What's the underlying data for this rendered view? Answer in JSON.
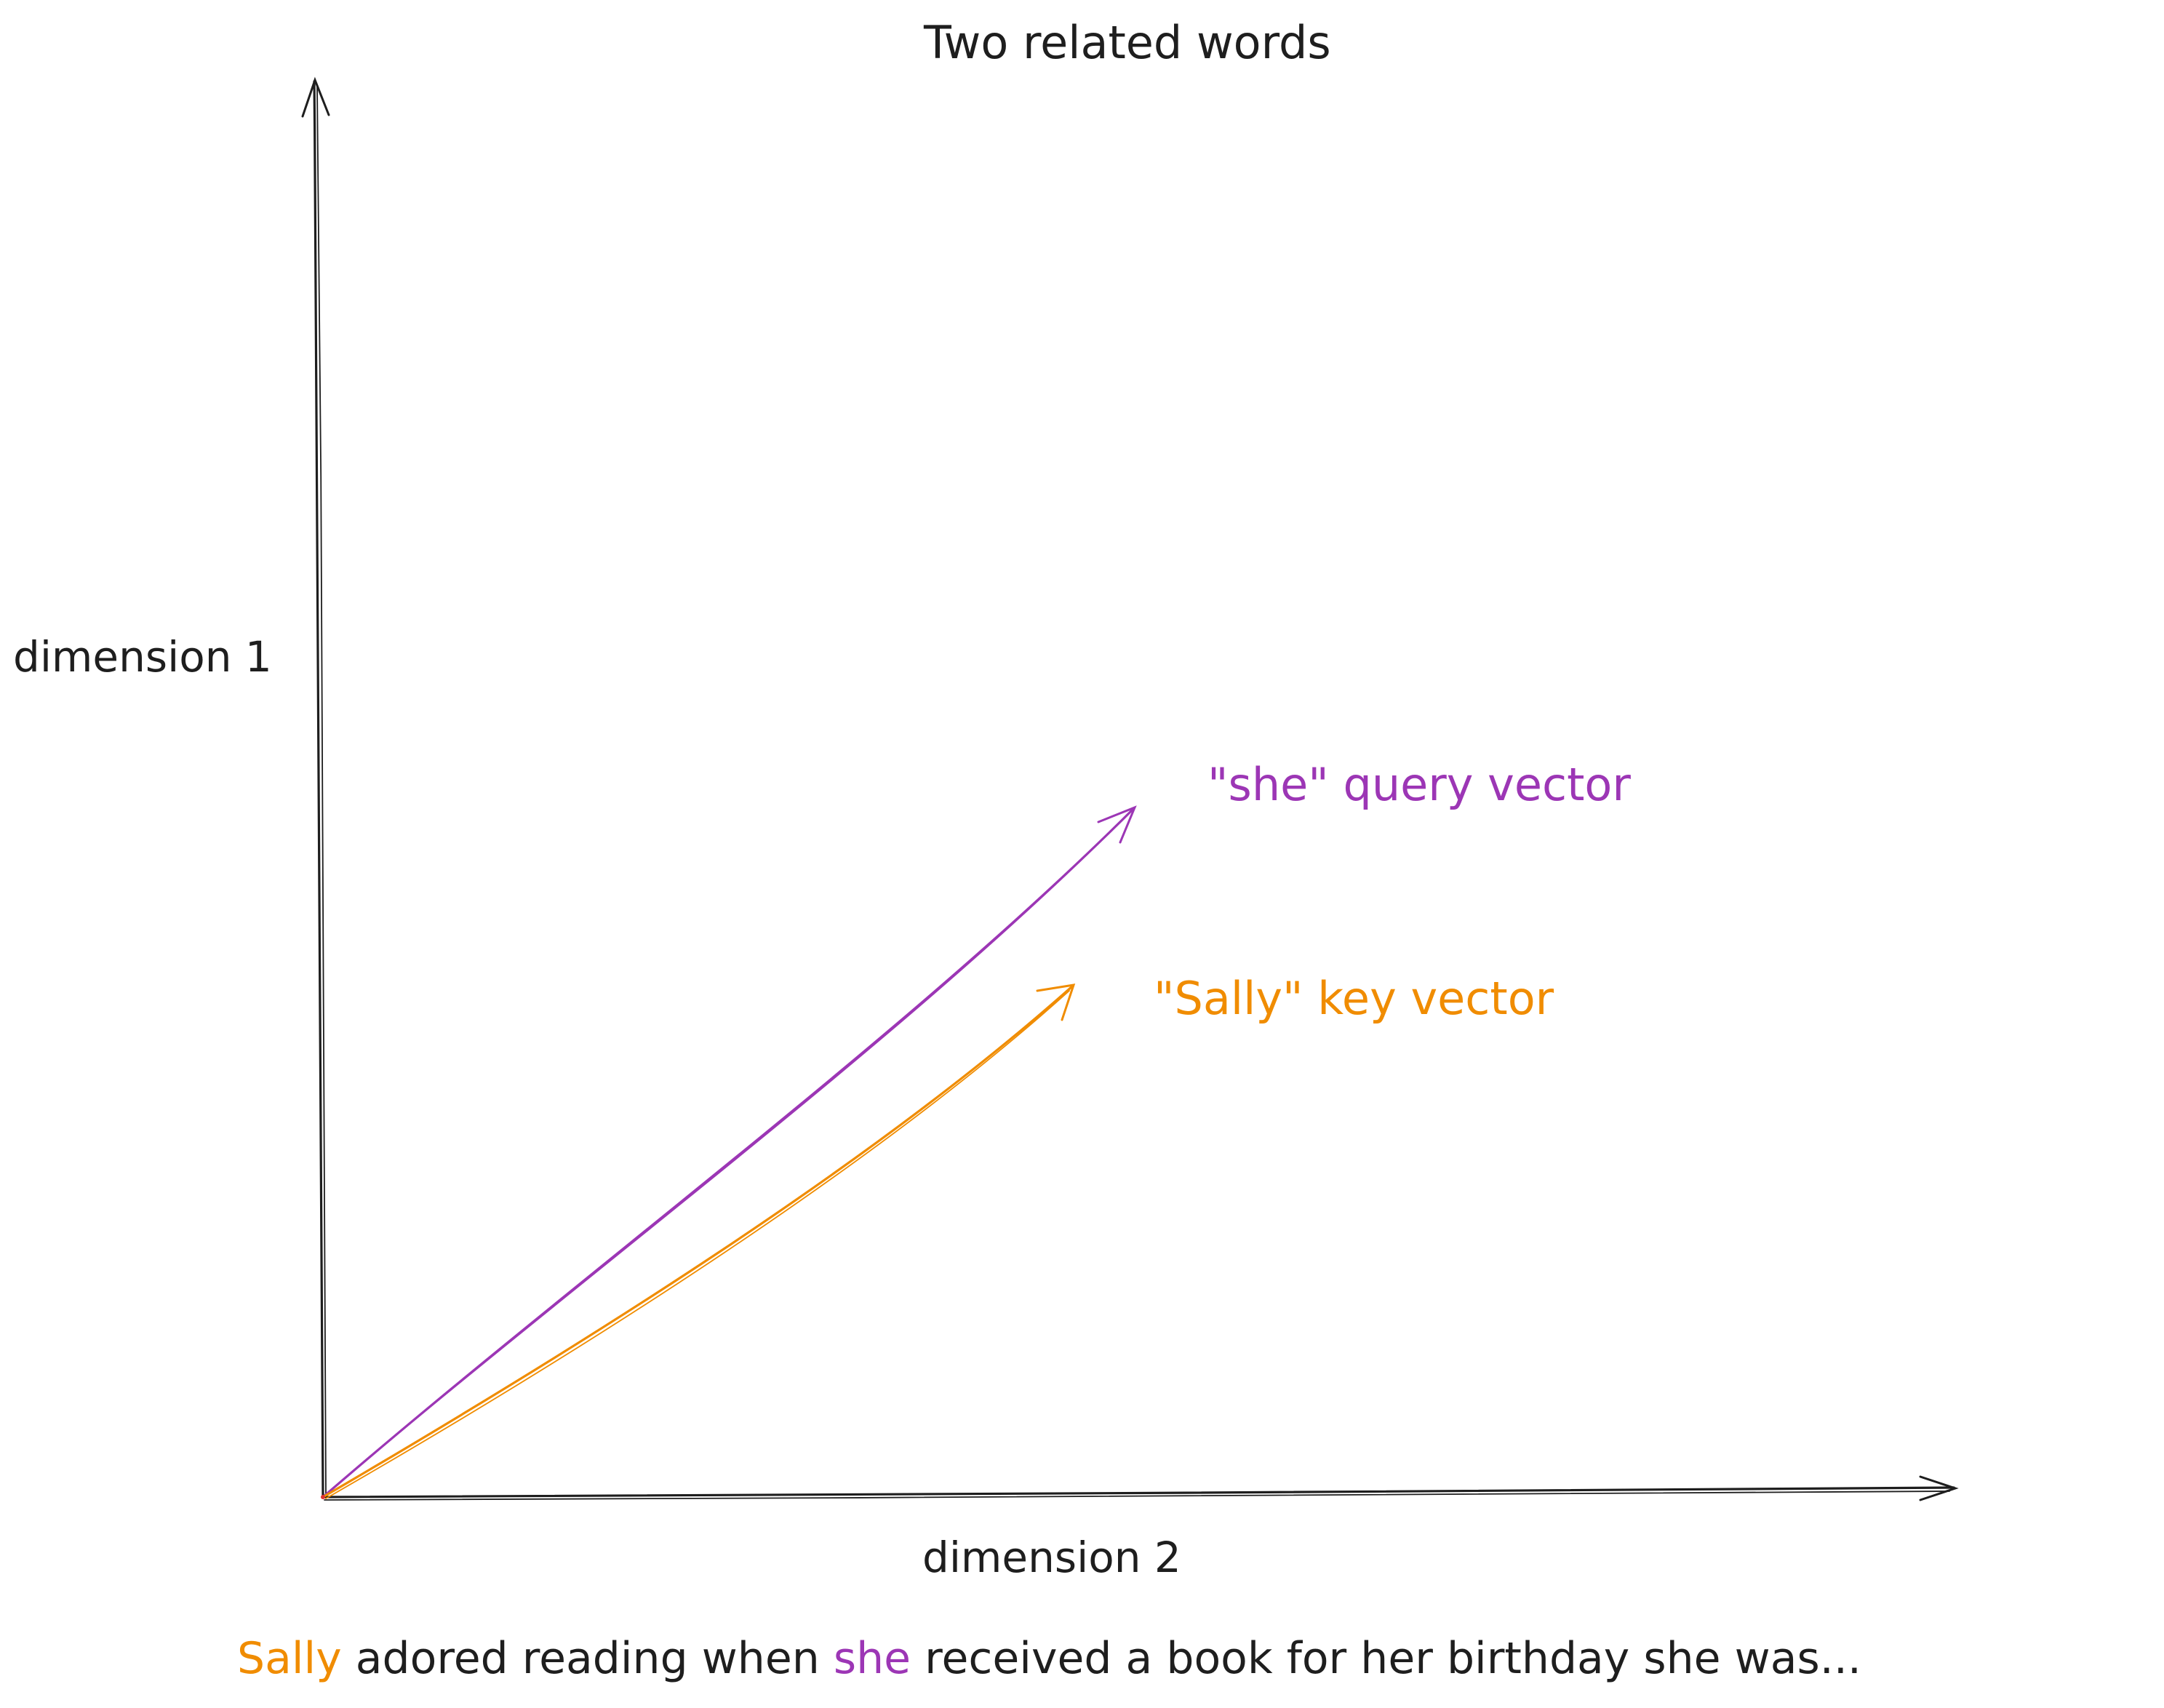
{
  "title": "Two related words",
  "axes": {
    "y_label": "dimension 1",
    "x_label": "dimension 2"
  },
  "vectors": {
    "query": {
      "label": "\"she\" query vector",
      "color": "#9c36b5"
    },
    "key": {
      "label": "\"Sally\" key vector",
      "color": "#f08c00"
    }
  },
  "sentence": {
    "word_key": "Sally",
    "part1": " adored reading when ",
    "word_query": "she",
    "part2": " received a book for her birthday she was..."
  },
  "colors": {
    "ink": "#1e1e1e",
    "query": "#9c36b5",
    "key": "#f08c00"
  }
}
